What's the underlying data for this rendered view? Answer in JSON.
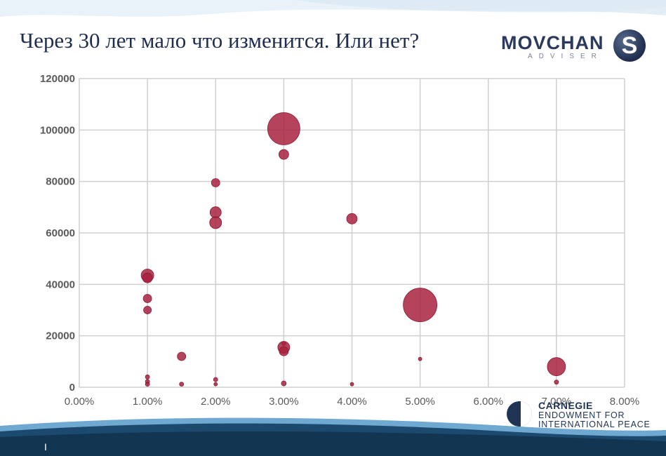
{
  "slide": {
    "title": "Через 30 лет мало что изменится. Или нет?",
    "page_mark": "I"
  },
  "logos": {
    "movchan": {
      "word": "MOVCHAN",
      "sub": "ADVISER",
      "badge": "S"
    },
    "carnegie": {
      "name": "CARNEGIE",
      "line2": "ENDOWMENT FOR",
      "line3": "INTERNATIONAL PEACE"
    }
  },
  "colors": {
    "bubble": "#a8223f",
    "title": "#1f2d4e",
    "grid": "#cfcfcf",
    "wave": "#1b4a6e"
  },
  "chart_data": {
    "type": "scatter",
    "title": "",
    "xlabel": "",
    "ylabel": "",
    "xlim": [
      0,
      0.08
    ],
    "ylim": [
      0,
      120000
    ],
    "x_ticks": [
      "0.00%",
      "1.00%",
      "2.00%",
      "3.00%",
      "4.00%",
      "5.00%",
      "6.00%",
      "7.00%",
      "8.00%"
    ],
    "y_ticks": [
      "0",
      "20000",
      "40000",
      "60000",
      "80000",
      "100000",
      "120000"
    ],
    "grid": true,
    "points": [
      {
        "x": 0.01,
        "y": 43500,
        "size": 9
      },
      {
        "x": 0.01,
        "y": 42500,
        "size": 7
      },
      {
        "x": 0.01,
        "y": 34500,
        "size": 6
      },
      {
        "x": 0.01,
        "y": 30000,
        "size": 5.5
      },
      {
        "x": 0.01,
        "y": 4000,
        "size": 3
      },
      {
        "x": 0.01,
        "y": 2200,
        "size": 3
      },
      {
        "x": 0.01,
        "y": 1200,
        "size": 3
      },
      {
        "x": 0.015,
        "y": 12000,
        "size": 6
      },
      {
        "x": 0.015,
        "y": 1200,
        "size": 3
      },
      {
        "x": 0.02,
        "y": 79500,
        "size": 6
      },
      {
        "x": 0.02,
        "y": 68000,
        "size": 8
      },
      {
        "x": 0.02,
        "y": 64000,
        "size": 8.5
      },
      {
        "x": 0.02,
        "y": 3000,
        "size": 3
      },
      {
        "x": 0.02,
        "y": 1200,
        "size": 2.5
      },
      {
        "x": 0.03,
        "y": 100500,
        "size": 23
      },
      {
        "x": 0.03,
        "y": 90500,
        "size": 7
      },
      {
        "x": 0.03,
        "y": 17000,
        "size": 3
      },
      {
        "x": 0.03,
        "y": 15500,
        "size": 8.5
      },
      {
        "x": 0.03,
        "y": 14000,
        "size": 6.5
      },
      {
        "x": 0.03,
        "y": 1500,
        "size": 3.5
      },
      {
        "x": 0.04,
        "y": 65500,
        "size": 7.5
      },
      {
        "x": 0.04,
        "y": 1200,
        "size": 2.5
      },
      {
        "x": 0.05,
        "y": 32000,
        "size": 24
      },
      {
        "x": 0.05,
        "y": 11000,
        "size": 2.5
      },
      {
        "x": 0.07,
        "y": 8000,
        "size": 13
      },
      {
        "x": 0.07,
        "y": 2000,
        "size": 3
      }
    ]
  }
}
